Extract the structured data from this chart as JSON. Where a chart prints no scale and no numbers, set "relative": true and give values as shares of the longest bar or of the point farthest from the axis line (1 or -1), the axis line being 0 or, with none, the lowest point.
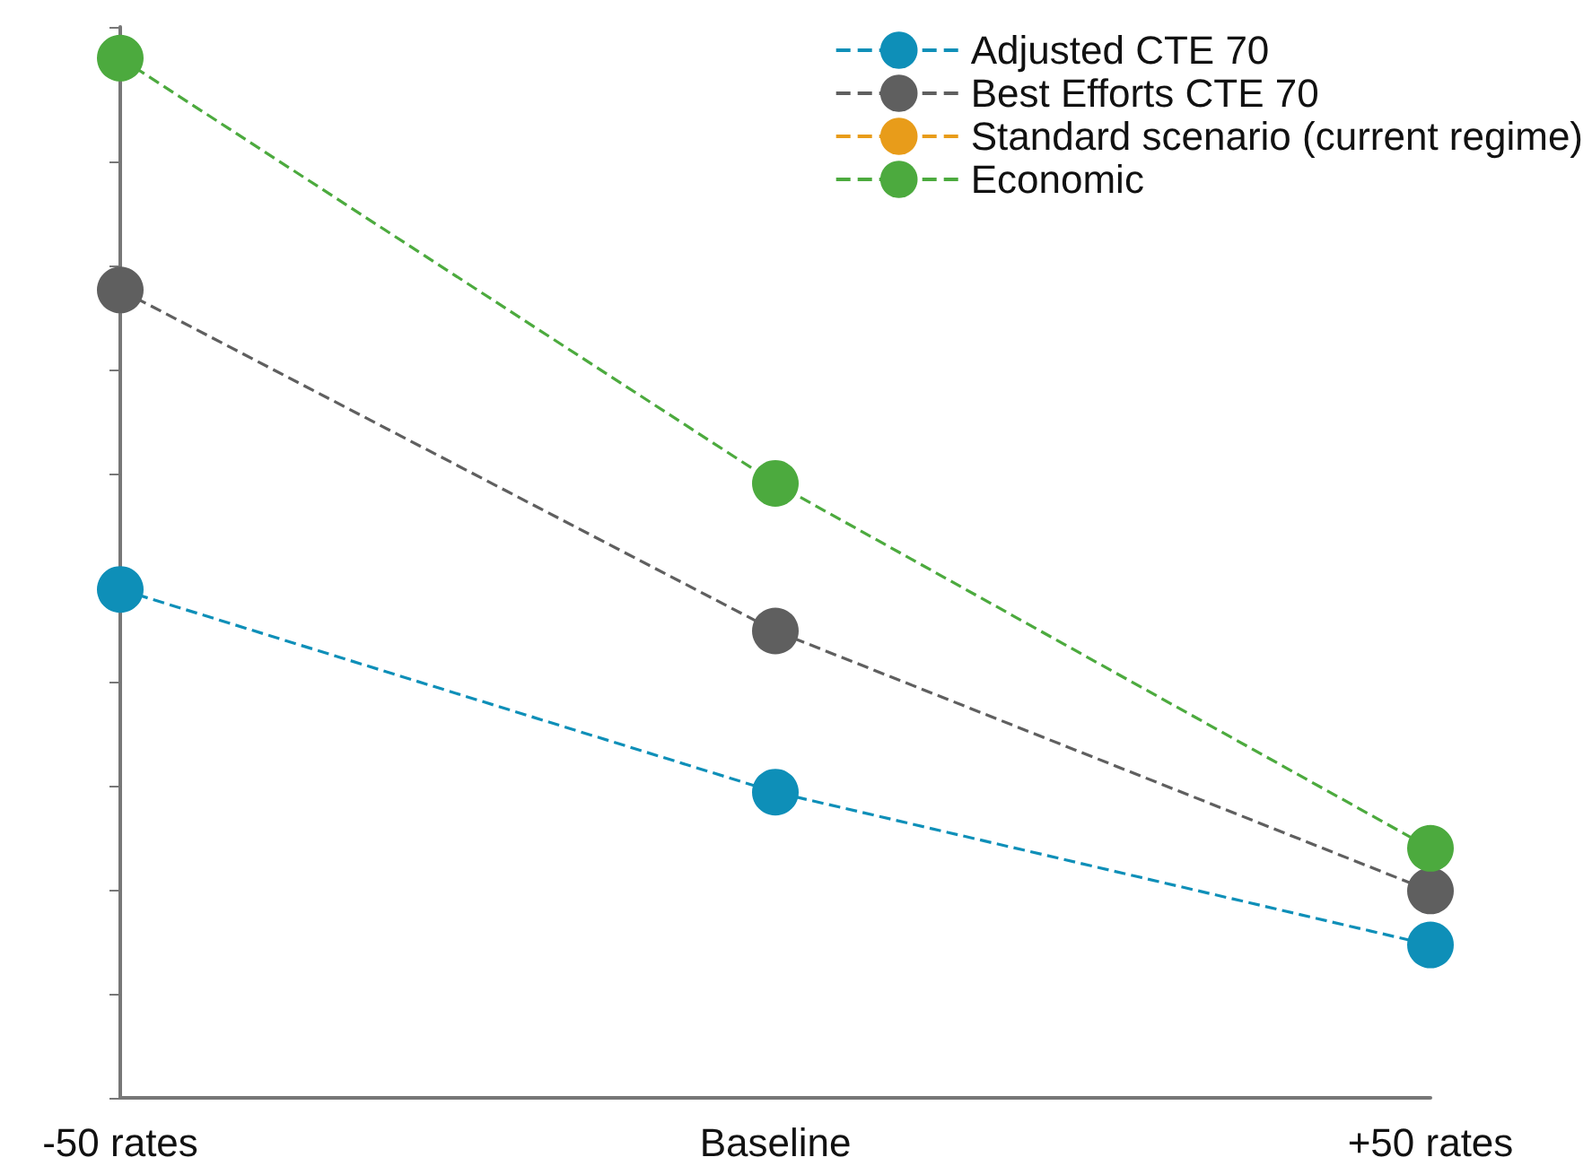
{
  "chart_data": {
    "type": "line",
    "relative": true,
    "categories": [
      "-50 rates",
      "Baseline",
      "+50 rates"
    ],
    "series": [
      {
        "name": "Adjusted CTE 70",
        "color": "#0e8fb8",
        "values": [
          0.489,
          0.294,
          0.147
        ]
      },
      {
        "name": "Best Efforts CTE 70",
        "color": "#5f5f5f",
        "values": [
          0.777,
          0.449,
          0.199
        ]
      },
      {
        "name": "Standard scenario (current regime)",
        "color": "#e89c1a",
        "values": [
          null,
          null,
          null
        ]
      },
      {
        "name": "Economic",
        "color": "#4caa3e",
        "values": [
          1,
          0.591,
          0.24
        ]
      }
    ],
    "marker": "circle",
    "line_style": "dashed",
    "legend": "top right",
    "grid": false
  }
}
